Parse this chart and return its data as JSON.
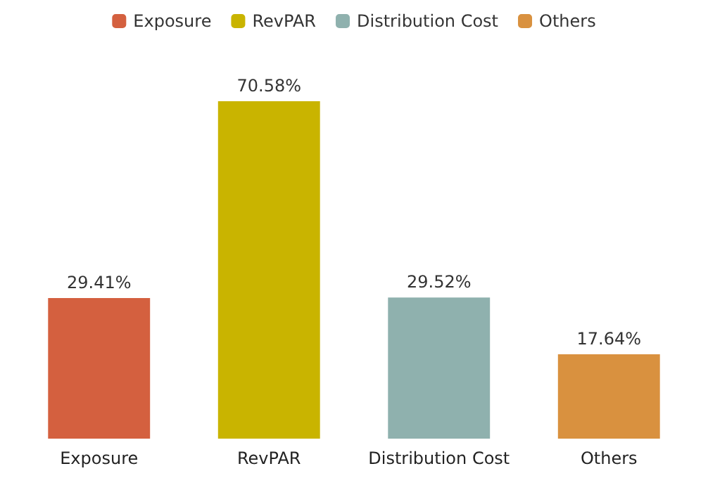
{
  "chart_data": {
    "type": "bar",
    "categories": [
      "Exposure",
      "RevPAR",
      "Distribution Cost",
      "Others"
    ],
    "series": [
      {
        "name": "Exposure",
        "color": "#d4603f",
        "values": [
          29.41,
          null,
          null,
          null
        ],
        "value_labels": [
          "29.41%",
          null,
          null,
          null
        ]
      },
      {
        "name": "RevPAR",
        "color": "#c9b400",
        "values": [
          null,
          70.58,
          null,
          null
        ],
        "value_labels": [
          null,
          "70.58%",
          null,
          null
        ]
      },
      {
        "name": "Distribution Cost",
        "color": "#8fb1ae",
        "values": [
          null,
          null,
          29.52,
          null
        ],
        "value_labels": [
          null,
          null,
          "29.52%",
          null
        ]
      },
      {
        "name": "Others",
        "color": "#d9913f",
        "values": [
          null,
          null,
          null,
          17.64
        ],
        "value_labels": [
          null,
          null,
          null,
          "17.64%"
        ]
      }
    ],
    "stacked": true,
    "legend": "top",
    "grid": false,
    "tick_labels": "x"
  }
}
